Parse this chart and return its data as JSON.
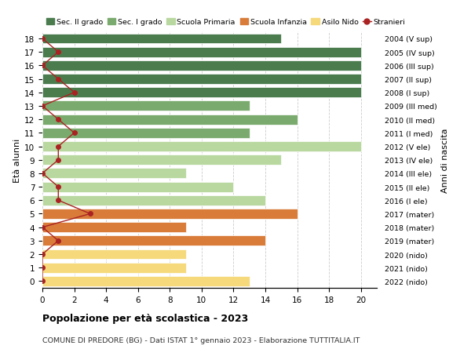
{
  "ages": [
    18,
    17,
    16,
    15,
    14,
    13,
    12,
    11,
    10,
    9,
    8,
    7,
    6,
    5,
    4,
    3,
    2,
    1,
    0
  ],
  "years": [
    "2004 (V sup)",
    "2005 (IV sup)",
    "2006 (III sup)",
    "2007 (II sup)",
    "2008 (I sup)",
    "2009 (III med)",
    "2010 (II med)",
    "2011 (I med)",
    "2012 (V ele)",
    "2013 (IV ele)",
    "2014 (III ele)",
    "2015 (II ele)",
    "2016 (I ele)",
    "2017 (mater)",
    "2018 (mater)",
    "2019 (mater)",
    "2020 (nido)",
    "2021 (nido)",
    "2022 (nido)"
  ],
  "bar_values": [
    15,
    20,
    20,
    20,
    20,
    13,
    16,
    13,
    20,
    15,
    9,
    12,
    14,
    16,
    9,
    14,
    9,
    9,
    13
  ],
  "bar_colors": [
    "#4a7c4e",
    "#4a7c4e",
    "#4a7c4e",
    "#4a7c4e",
    "#4a7c4e",
    "#7aaa6e",
    "#7aaa6e",
    "#7aaa6e",
    "#b8d8a0",
    "#b8d8a0",
    "#b8d8a0",
    "#b8d8a0",
    "#b8d8a0",
    "#d97c3a",
    "#d97c3a",
    "#d97c3a",
    "#f5d97a",
    "#f5d97a",
    "#f5d97a"
  ],
  "stranieri": [
    0,
    1,
    0,
    1,
    2,
    0,
    1,
    2,
    1,
    1,
    0,
    1,
    1,
    3,
    0,
    1,
    0,
    0,
    0
  ],
  "color_sec2": "#4a7c4e",
  "color_sec1": "#7aaa6e",
  "color_primaria": "#b8d8a0",
  "color_infanzia": "#d97c3a",
  "color_nido": "#f5d97a",
  "color_stranieri": "#aa2222",
  "title_bold": "Popolazione per età scolastica - 2023",
  "subtitle": "COMUNE DI PREDORE (BG) - Dati ISTAT 1° gennaio 2023 - Elaborazione TUTTITALIA.IT",
  "ylabel": "Età alunni",
  "ylabel_right": "Anni di nascita",
  "xlim": [
    0,
    21
  ],
  "bg_color": "#ffffff",
  "grid_color": "#cccccc"
}
